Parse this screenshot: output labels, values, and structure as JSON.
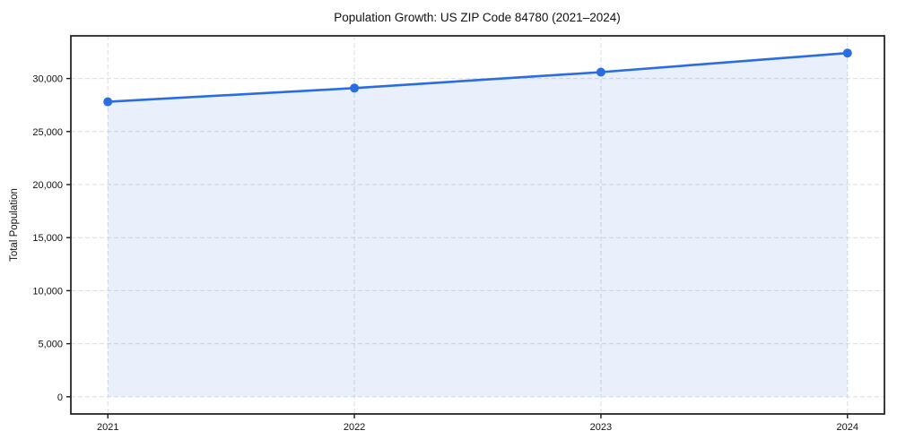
{
  "chart_data": {
    "type": "line",
    "title": "Population Growth: US ZIP Code 84780 (2021–2024)",
    "xlabel": "",
    "ylabel": "Total Population",
    "x": [
      2021,
      2022,
      2023,
      2024
    ],
    "series": [
      {
        "name": "Total Population",
        "values": [
          27800,
          29100,
          30600,
          32400
        ]
      }
    ],
    "xticks": [
      2021,
      2022,
      2023,
      2024
    ],
    "xtick_labels": [
      "2021",
      "2022",
      "2023",
      "2024"
    ],
    "yticks": [
      0,
      5000,
      10000,
      15000,
      20000,
      25000,
      30000
    ],
    "ytick_labels": [
      "0",
      "5,000",
      "10,000",
      "15,000",
      "20,000",
      "25,000",
      "30,000"
    ],
    "xlim": [
      2020.85,
      2024.15
    ],
    "ylim": [
      -1620,
      34020
    ],
    "grid": true,
    "grid_style": "dashed",
    "legend": false,
    "area_fill": true,
    "area_baseline": 0,
    "line_color": "#2a6de3",
    "marker_color": "#2a6de3",
    "fill_color": "rgba(42,109,227,0.10)",
    "grid_color": "#d9dce2",
    "spine_color": "#1a1a1a",
    "tick_text_color": "#111111",
    "background_color": "#ffffff"
  }
}
